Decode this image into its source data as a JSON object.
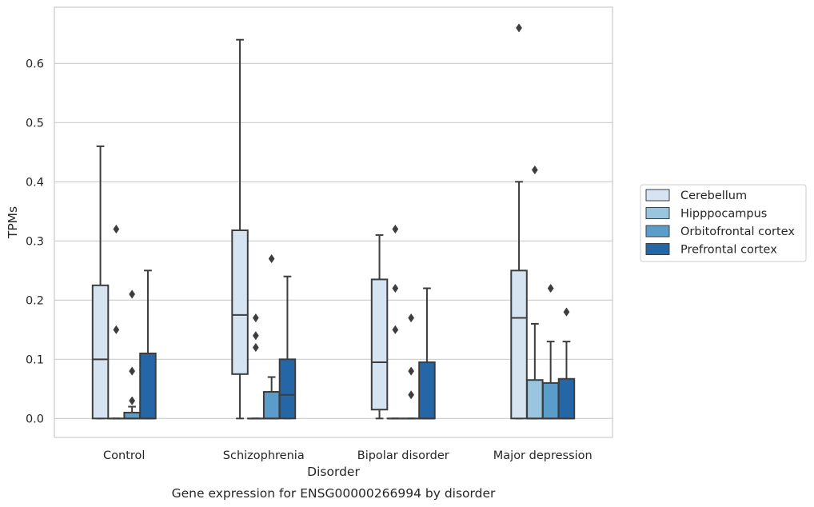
{
  "caption": "Gene expression for ENSG00000266994 by disorder",
  "chart_data": {
    "type": "box",
    "title": "",
    "xlabel": "Disorder",
    "ylabel": "TPMs",
    "ylim": [
      -0.032,
      0.695
    ],
    "yticks": [
      0.0,
      0.1,
      0.2,
      0.3,
      0.4,
      0.5,
      0.6
    ],
    "ytick_labels": [
      "0.0",
      "0.1",
      "0.2",
      "0.3",
      "0.4",
      "0.5",
      "0.6"
    ],
    "grid": "horizontal",
    "legend_position": "right",
    "categories": [
      "Control",
      "Schizophrenia",
      "Bipolar disorder",
      "Major depression"
    ],
    "series": [
      {
        "name": "Cerebellum",
        "color": "#d6e4f2",
        "boxes": [
          {
            "whislo": 0.0,
            "q1": 0.0,
            "med": 0.1,
            "q3": 0.225,
            "whishi": 0.46,
            "fliers": []
          },
          {
            "whislo": 0.0,
            "q1": 0.075,
            "med": 0.175,
            "q3": 0.318,
            "whishi": 0.64,
            "fliers": []
          },
          {
            "whislo": 0.0,
            "q1": 0.015,
            "med": 0.095,
            "q3": 0.235,
            "whishi": 0.31,
            "fliers": []
          },
          {
            "whislo": 0.0,
            "q1": 0.0,
            "med": 0.17,
            "q3": 0.25,
            "whishi": 0.4,
            "fliers": [
              0.66
            ]
          }
        ]
      },
      {
        "name": "Hipppocampus",
        "color": "#9ac5de",
        "boxes": [
          {
            "whislo": 0.0,
            "q1": 0.0,
            "med": 0.0,
            "q3": 0.0,
            "whishi": 0.0,
            "fliers": [
              0.32,
              0.15
            ]
          },
          {
            "whislo": 0.0,
            "q1": 0.0,
            "med": 0.0,
            "q3": 0.0,
            "whishi": 0.0,
            "fliers": [
              0.17,
              0.14,
              0.12
            ]
          },
          {
            "whislo": 0.0,
            "q1": 0.0,
            "med": 0.0,
            "q3": 0.0,
            "whishi": 0.0,
            "fliers": [
              0.32,
              0.22,
              0.15
            ]
          },
          {
            "whislo": 0.0,
            "q1": 0.0,
            "med": 0.0,
            "q3": 0.065,
            "whishi": 0.16,
            "fliers": [
              0.42
            ]
          }
        ]
      },
      {
        "name": "Orbitofrontal cortex",
        "color": "#5a9dcb",
        "boxes": [
          {
            "whislo": 0.0,
            "q1": 0.0,
            "med": 0.0,
            "q3": 0.01,
            "whishi": 0.02,
            "fliers": [
              0.21,
              0.08,
              0.03
            ]
          },
          {
            "whislo": 0.0,
            "q1": 0.0,
            "med": 0.0,
            "q3": 0.045,
            "whishi": 0.07,
            "fliers": [
              0.27
            ]
          },
          {
            "whislo": 0.0,
            "q1": 0.0,
            "med": 0.0,
            "q3": 0.0,
            "whishi": 0.0,
            "fliers": [
              0.17,
              0.08,
              0.04
            ]
          },
          {
            "whislo": 0.0,
            "q1": 0.0,
            "med": 0.0,
            "q3": 0.06,
            "whishi": 0.13,
            "fliers": [
              0.22
            ]
          }
        ]
      },
      {
        "name": "Prefrontal cortex",
        "color": "#2466a6",
        "boxes": [
          {
            "whislo": 0.0,
            "q1": 0.0,
            "med": 0.0,
            "q3": 0.11,
            "whishi": 0.25,
            "fliers": []
          },
          {
            "whislo": 0.0,
            "q1": 0.0,
            "med": 0.04,
            "q3": 0.1,
            "whishi": 0.24,
            "fliers": []
          },
          {
            "whislo": 0.0,
            "q1": 0.0,
            "med": 0.0,
            "q3": 0.095,
            "whishi": 0.22,
            "fliers": []
          },
          {
            "whislo": 0.0,
            "q1": 0.0,
            "med": 0.0,
            "q3": 0.067,
            "whishi": 0.13,
            "fliers": [
              0.18
            ]
          }
        ]
      }
    ]
  }
}
